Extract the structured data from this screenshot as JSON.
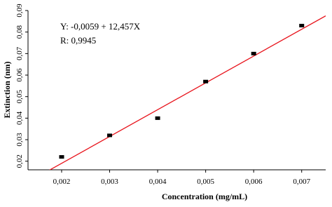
{
  "chart_data": {
    "type": "scatter",
    "x_label": "Concentration (mg/mL)",
    "y_label": "Extinction (nm)",
    "x": [
      0.002,
      0.003,
      0.004,
      0.005,
      0.006,
      0.007
    ],
    "series": [
      {
        "color": "#000000",
        "values": [
          0.022,
          0.032,
          0.04,
          0.057,
          0.07,
          0.083
        ]
      }
    ],
    "xlim": [
      0.0013,
      0.0075
    ],
    "ylim": [
      0.016,
      0.09
    ],
    "xticks": [
      {
        "value": 0.002,
        "label": "0,002"
      },
      {
        "value": 0.003,
        "label": "0,003"
      },
      {
        "value": 0.004,
        "label": "0,004"
      },
      {
        "value": 0.005,
        "label": "0,005"
      },
      {
        "value": 0.006,
        "label": "0,006"
      },
      {
        "value": 0.007,
        "label": "0,007"
      }
    ],
    "yticks": [
      {
        "value": 0.02,
        "label": "0,02"
      },
      {
        "value": 0.03,
        "label": "0,03"
      },
      {
        "value": 0.04,
        "label": "0,04"
      },
      {
        "value": 0.05,
        "label": "0,05"
      },
      {
        "value": 0.06,
        "label": "0,06"
      },
      {
        "value": 0.07,
        "label": "0,07"
      },
      {
        "value": 0.08,
        "label": "0,08"
      },
      {
        "value": 0.09,
        "label": "0,09"
      }
    ],
    "regression": {
      "intercept": -0.0059,
      "slope": 12.457,
      "color": "#e8141c",
      "label": "Y: -0,0059 + 12,457X"
    },
    "r": {
      "value": 0.9945,
      "label": "R: 0,9945"
    }
  }
}
